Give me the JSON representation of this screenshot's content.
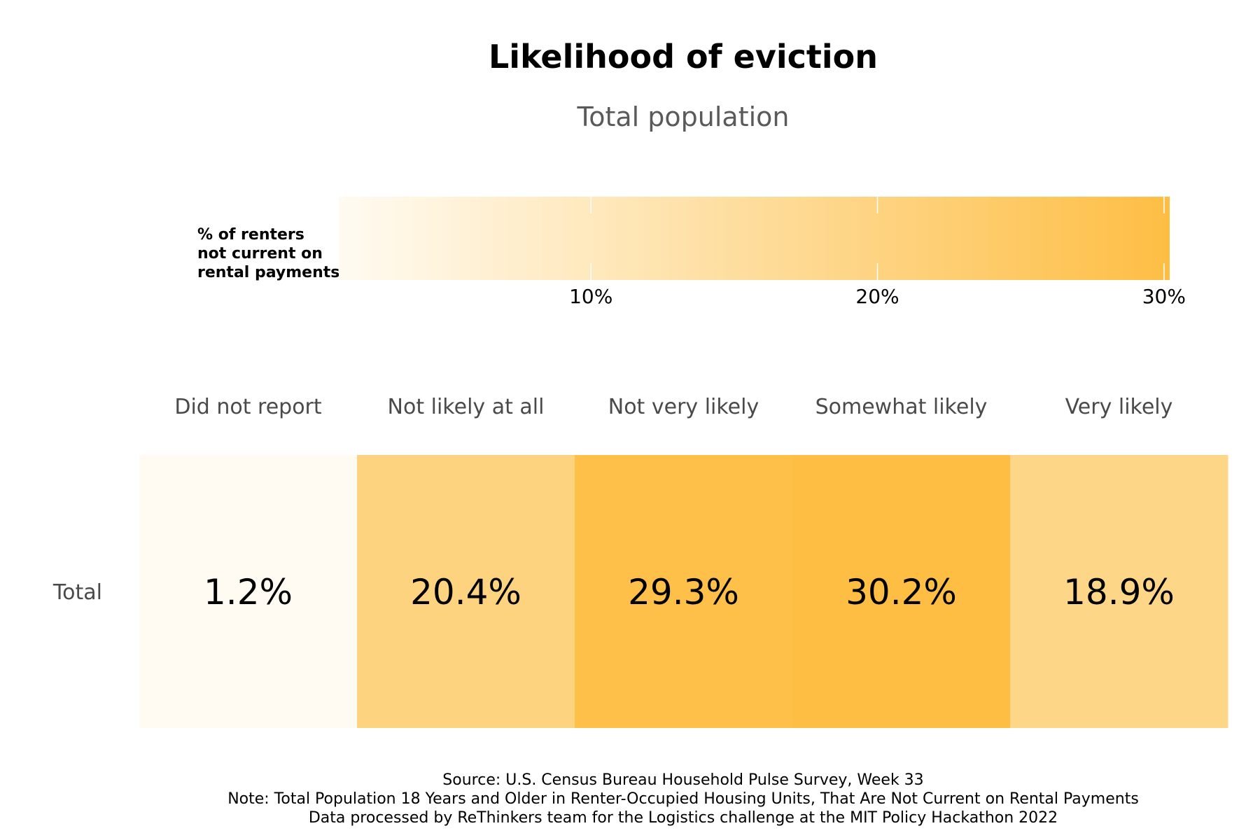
{
  "chart_data": {
    "type": "heatmap",
    "title": "Likelihood of eviction",
    "subtitle": "Total population",
    "legend": {
      "title_lines": [
        "% of renters",
        "not current on",
        "rental payments"
      ],
      "ticks": [
        10,
        20,
        30
      ],
      "tick_labels": [
        "10%",
        "20%",
        "30%"
      ],
      "range": [
        1.2,
        30.2
      ],
      "low_color": "#fffbf2",
      "high_color": "#febe44"
    },
    "columns": [
      "Did not report",
      "Not likely at all",
      "Not very likely",
      "Somewhat likely",
      "Very likely"
    ],
    "rows": [
      "Total"
    ],
    "values": [
      [
        1.2,
        20.4,
        29.3,
        30.2,
        18.9
      ]
    ],
    "value_labels": [
      [
        "1.2%",
        "20.4%",
        "29.3%",
        "30.2%",
        "18.9%"
      ]
    ],
    "caption_lines": [
      "Source: U.S. Census Bureau Household Pulse Survey, Week 33",
      "Note: Total Population 18 Years and Older in Renter-Occupied Housing Units, That Are Not Current on Rental Payments",
      "Data processed by ReThinkers team for the Logistics challenge at the MIT Policy Hackathon 2022"
    ]
  }
}
